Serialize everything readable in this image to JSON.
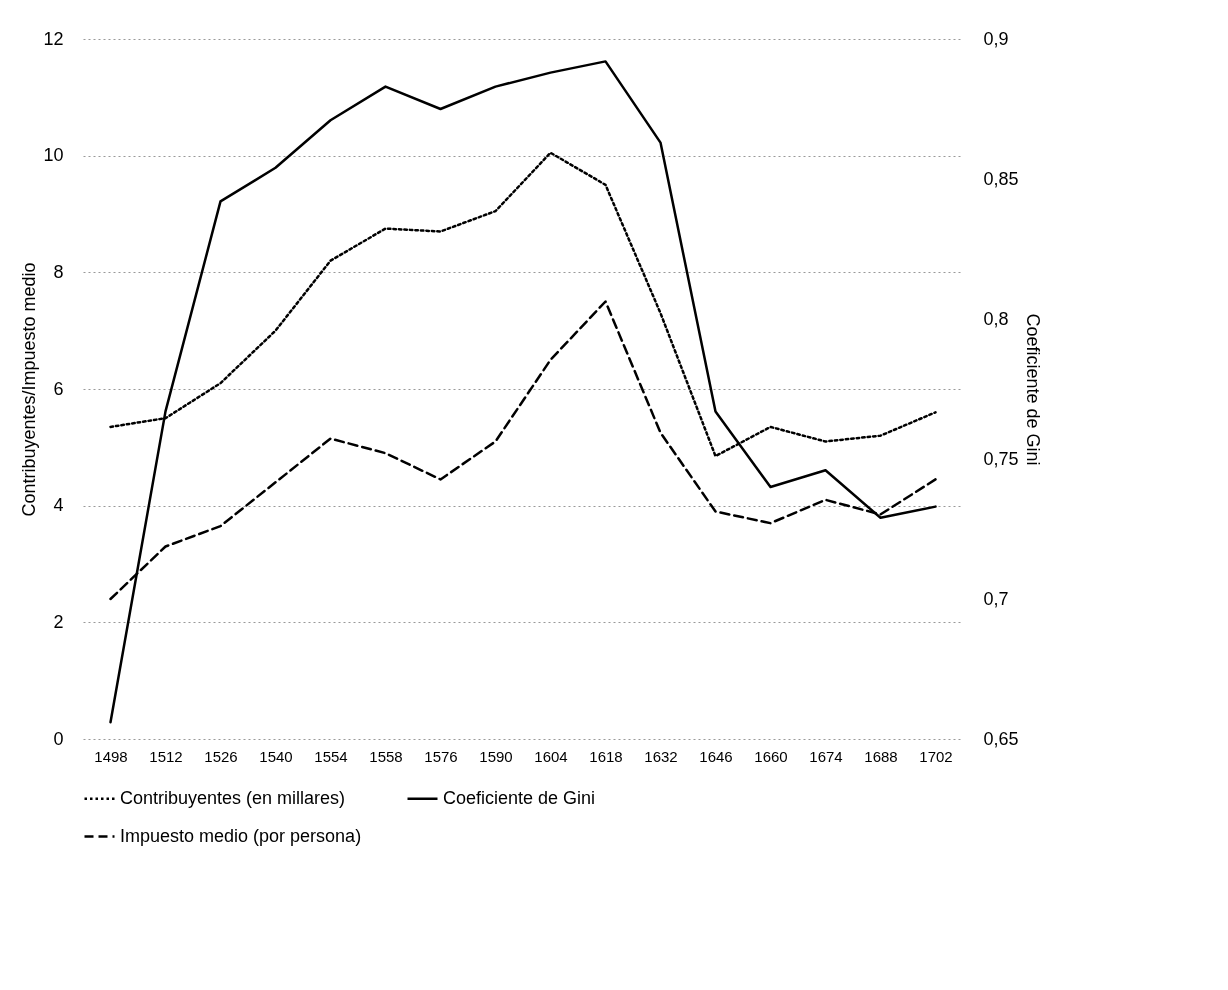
{
  "chart_data": {
    "type": "line",
    "categories": [
      "1498",
      "1512",
      "1526",
      "1540",
      "1554",
      "1558",
      "1576",
      "1590",
      "1604",
      "1618",
      "1632",
      "1646",
      "1660",
      "1674",
      "1688",
      "1702"
    ],
    "ylabel": "Contribuyentes/Impuesto medio",
    "y2label": "Coeficiente de Gini",
    "ylim": [
      0,
      12
    ],
    "yticks": [
      0,
      2,
      4,
      6,
      8,
      10,
      12
    ],
    "y2lim": [
      0.65,
      0.9
    ],
    "y2ticks": [
      {
        "value": 0.65,
        "label": "0,65"
      },
      {
        "value": 0.7,
        "label": "0,7"
      },
      {
        "value": 0.75,
        "label": "0,75"
      },
      {
        "value": 0.8,
        "label": "0,8"
      },
      {
        "value": 0.85,
        "label": "0,85"
      },
      {
        "value": 0.9,
        "label": "0,9"
      }
    ],
    "grid": "y",
    "legend": "bottom",
    "series": [
      {
        "name": "Contribuyentes (en millares)",
        "color": "#000000",
        "line_style": "dotted",
        "values": [
          5.35,
          5.5,
          6.1,
          7.0,
          8.2,
          8.75,
          8.7,
          9.05,
          10.05,
          9.5,
          7.3,
          4.85,
          5.35,
          5.1,
          5.2,
          5.6
        ]
      },
      {
        "name": "Coeficiente de Gini",
        "color": "#000000",
        "line_style": "solid",
        "axis": "y2",
        "values": [
          0.656,
          0.767,
          0.842,
          0.854,
          0.871,
          0.883,
          0.875,
          0.883,
          0.888,
          0.892,
          0.863,
          0.767,
          0.74,
          0.746,
          0.729,
          0.733
        ]
      },
      {
        "name": "Impuesto medio (por persona)",
        "color": "#000000",
        "line_style": "dashed",
        "values": [
          2.4,
          3.3,
          3.65,
          4.4,
          5.15,
          4.9,
          4.45,
          5.1,
          6.5,
          7.5,
          5.25,
          3.9,
          3.7,
          4.1,
          3.85,
          4.45
        ]
      }
    ]
  }
}
